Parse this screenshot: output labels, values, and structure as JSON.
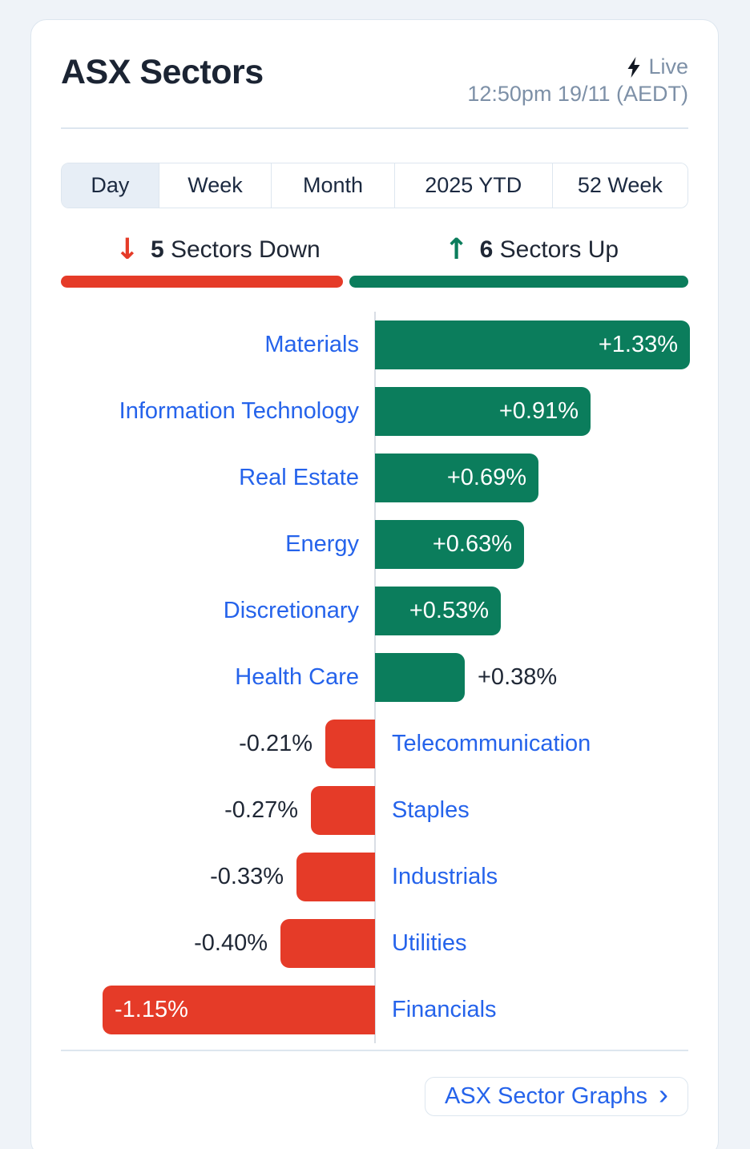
{
  "header": {
    "title": "ASX Sectors",
    "live_label": "Live",
    "timestamp": "12:50pm 19/11 (AEDT)"
  },
  "tabs": [
    {
      "label": "Day",
      "selected": true
    },
    {
      "label": "Week",
      "selected": false
    },
    {
      "label": "Month",
      "selected": false
    },
    {
      "label": "2025 YTD",
      "selected": false
    },
    {
      "label": "52 Week",
      "selected": false
    }
  ],
  "summary": {
    "down": {
      "count": "5",
      "label": "Sectors Down"
    },
    "up": {
      "count": "6",
      "label": "Sectors Up"
    }
  },
  "chart_data": {
    "type": "bar",
    "orientation": "horizontal",
    "title": "ASX Sectors",
    "xlim": [
      -1.33,
      1.33
    ],
    "axis": "center-zero",
    "grid": false,
    "legend": false,
    "categories": [
      "Materials",
      "Information Technology",
      "Real Estate",
      "Energy",
      "Discretionary",
      "Health Care",
      "Telecommunication",
      "Staples",
      "Industrials",
      "Utilities",
      "Financials"
    ],
    "values": [
      1.33,
      0.91,
      0.69,
      0.63,
      0.53,
      0.38,
      -0.21,
      -0.27,
      -0.33,
      -0.4,
      -1.15
    ],
    "labels": [
      "+1.33%",
      "+0.91%",
      "+0.69%",
      "+0.63%",
      "+0.53%",
      "+0.38%",
      "-0.21%",
      "-0.27%",
      "-0.33%",
      "-0.40%",
      "-1.15%"
    ]
  },
  "footer": {
    "link_label": "ASX Sector Graphs",
    "chevron": "›"
  },
  "colors": {
    "up_green": "#0b7d5c",
    "down_red": "#e53b28",
    "sector_link_blue": "#2563eb",
    "title_navy": "#1b2433",
    "muted_blue_gray": "#7d90a7",
    "divider": "#dde6ef",
    "tab_selected_bg": "#e7eef6",
    "axis_line": "#d9dee5",
    "card_bg": "#ffffff",
    "page_bg": "#eff3f8"
  }
}
